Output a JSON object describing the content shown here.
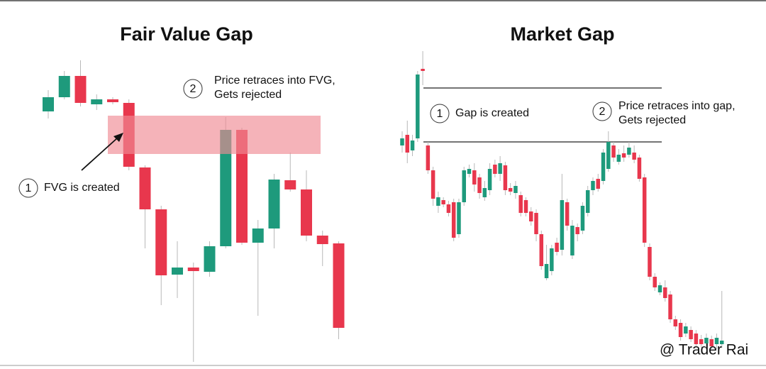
{
  "chart_data": [
    {
      "type": "candlestick",
      "title": "Fair Value Gap",
      "up_color": "#1e9a7c",
      "down_color": "#e8374d",
      "zone_color": "#f08a93",
      "ylim": [
        0,
        520
      ],
      "zone": [
        303,
        357
      ],
      "open": [
        363,
        383,
        413,
        373,
        380,
        375,
        284,
        225,
        133,
        143,
        137,
        173,
        337,
        178,
        198,
        266,
        253,
        188,
        177
      ],
      "high": [
        393,
        420,
        435,
        387,
        383,
        380,
        287,
        230,
        180,
        150,
        180,
        355,
        340,
        210,
        275,
        305,
        280,
        195,
        180
      ],
      "low": [
        353,
        380,
        370,
        365,
        373,
        280,
        170,
        90,
        100,
        10,
        130,
        170,
        175,
        75,
        170,
        250,
        180,
        145,
        42
      ],
      "close": [
        383,
        413,
        375,
        380,
        376,
        285,
        225,
        132,
        143,
        138,
        173,
        337,
        178,
        198,
        267,
        253,
        188,
        176,
        58
      ],
      "annotations": [
        {
          "number": 1,
          "text": [
            "FVG is created"
          ]
        },
        {
          "number": 2,
          "text": [
            "Price retraces into FVG,",
            "Gets rejected"
          ]
        }
      ]
    },
    {
      "type": "candlestick",
      "title": "Market Gap",
      "up_color": "#1e9a7c",
      "down_color": "#e8374d",
      "ylim": [
        0,
        520
      ],
      "levels": [
        396,
        320
      ],
      "watermark": "@ Trader Rai",
      "open": [
        315,
        330,
        308,
        325,
        423,
        315,
        280,
        230,
        238,
        232,
        235,
        190,
        235,
        275,
        280,
        270,
        242,
        252,
        288,
        275,
        287,
        255,
        248,
        245,
        238,
        222,
        220,
        190,
        128,
        138,
        178,
        168,
        235,
        160,
        200,
        195,
        220,
        252,
        268,
        265,
        282,
        315,
        292,
        304,
        302,
        305,
        298,
        270,
        172,
        130,
        108,
        115,
        105,
        70,
        65,
        50,
        55,
        50,
        42,
        36,
        42,
        35,
        35
      ],
      "high": [
        335,
        350,
        330,
        420,
        448,
        320,
        285,
        250,
        242,
        237,
        240,
        240,
        285,
        288,
        290,
        275,
        265,
        290,
        295,
        300,
        292,
        262,
        265,
        250,
        242,
        228,
        225,
        195,
        175,
        175,
        185,
        275,
        240,
        210,
        205,
        235,
        258,
        270,
        275,
        310,
        335,
        320,
        310,
        315,
        320,
        315,
        302,
        275,
        177,
        135,
        122,
        125,
        110,
        75,
        70,
        65,
        60,
        55,
        48,
        50,
        47,
        50,
        110
      ],
      "low": [
        305,
        290,
        300,
        320,
        400,
        275,
        230,
        220,
        228,
        215,
        180,
        185,
        230,
        270,
        250,
        240,
        237,
        245,
        270,
        265,
        245,
        245,
        240,
        215,
        215,
        202,
        180,
        140,
        125,
        132,
        160,
        160,
        195,
        155,
        180,
        190,
        215,
        245,
        250,
        260,
        278,
        292,
        288,
        292,
        298,
        290,
        264,
        172,
        125,
        110,
        104,
        95,
        65,
        55,
        40,
        45,
        38,
        30,
        30,
        30,
        28,
        28,
        30
      ],
      "close": [
        325,
        305,
        322,
        415,
        420,
        280,
        240,
        242,
        232,
        220,
        185,
        235,
        280,
        282,
        260,
        248,
        255,
        282,
        275,
        290,
        252,
        250,
        258,
        220,
        220,
        208,
        190,
        145,
        148,
        170,
        165,
        238,
        202,
        202,
        190,
        230,
        252,
        265,
        254,
        305,
        320,
        298,
        302,
        298,
        312,
        295,
        268,
        178,
        130,
        115,
        118,
        100,
        70,
        60,
        45,
        60,
        42,
        35,
        35,
        44,
        32,
        44,
        40
      ],
      "annotations": [
        {
          "number": 1,
          "text": [
            "Gap is created"
          ]
        },
        {
          "number": 2,
          "text": [
            "Price retraces into gap,",
            "Gets rejected"
          ]
        }
      ]
    }
  ]
}
